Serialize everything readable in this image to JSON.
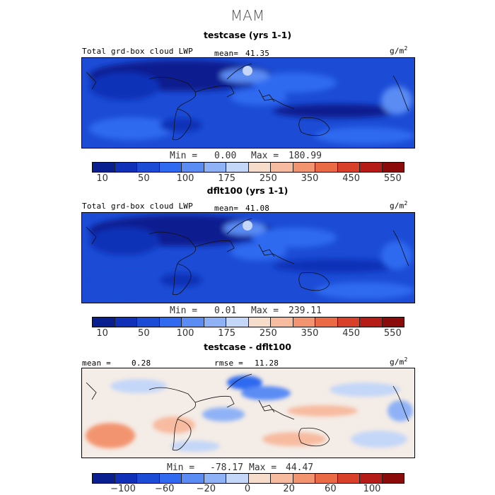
{
  "title": "MAM",
  "colors": {
    "abs_scale": [
      "#0a1f8f",
      "#1030b8",
      "#1c4cd6",
      "#2f6af0",
      "#5a8cf4",
      "#8fb2f6",
      "#c4d7f8",
      "#f6dccb",
      "#f7bba0",
      "#f39470",
      "#ea6a45",
      "#d8402a",
      "#b51c17",
      "#8b0a0a"
    ],
    "diff_scale": [
      "#0a1f8f",
      "#1030b8",
      "#1c4cd6",
      "#2f6af0",
      "#5a8cf4",
      "#8fb2f6",
      "#c4d7f8",
      "#f6dccb",
      "#f7bba0",
      "#f39470",
      "#ea6a45",
      "#d8402a",
      "#b51c17",
      "#8b0a0a"
    ]
  },
  "panels": {
    "p1": {
      "title": "testcase (yrs 1-1)",
      "variable": "Total grd-box cloud LWP",
      "mean_label": "mean=",
      "mean_value": "41.35",
      "units": "g/m",
      "units_sup": "2",
      "min_label": "Min =",
      "min_value": "0.00",
      "max_label": "Max =",
      "max_value": "180.99",
      "ticks": [
        "10",
        "50",
        "100",
        "175",
        "250",
        "350",
        "450",
        "550"
      ]
    },
    "p2": {
      "title": "dflt100 (yrs 1-1)",
      "variable": "Total grd-box cloud LWP",
      "mean_label": "mean=",
      "mean_value": "41.08",
      "units": "g/m",
      "units_sup": "2",
      "min_label": "Min =",
      "min_value": "0.01",
      "max_label": "Max =",
      "max_value": "239.11",
      "ticks": [
        "10",
        "50",
        "100",
        "175",
        "250",
        "350",
        "450",
        "550"
      ]
    },
    "p3": {
      "title": "testcase - dflt100",
      "mean_label": "mean =",
      "mean_value": "0.28",
      "rmse_label": "rmse =",
      "rmse_value": "11.28",
      "units": "g/m",
      "units_sup": "2",
      "min_label": "Min =",
      "min_value": "-78.17",
      "max_label": "Max =",
      "max_value": "44.47",
      "ticks": [
        "−100",
        "−60",
        "−20",
        "0",
        "20",
        "60",
        "100"
      ]
    }
  },
  "chart_data": [
    {
      "type": "heatmap",
      "title": "testcase (yrs 1-1)",
      "variable": "Total grd-box cloud LWP",
      "units": "g/m2",
      "mean": 41.35,
      "min": 0.0,
      "max": 180.99,
      "colorbar_levels": [
        10,
        50,
        100,
        175,
        250,
        350,
        450,
        550
      ]
    },
    {
      "type": "heatmap",
      "title": "dflt100 (yrs 1-1)",
      "variable": "Total grd-box cloud LWP",
      "units": "g/m2",
      "mean": 41.08,
      "min": 0.01,
      "max": 239.11,
      "colorbar_levels": [
        10,
        50,
        100,
        175,
        250,
        350,
        450,
        550
      ]
    },
    {
      "type": "heatmap",
      "title": "testcase - dflt100",
      "units": "g/m2",
      "mean": 0.28,
      "rmse": 11.28,
      "min": -78.17,
      "max": 44.47,
      "colorbar_levels": [
        -100,
        -60,
        -20,
        0,
        20,
        60,
        100
      ]
    }
  ]
}
